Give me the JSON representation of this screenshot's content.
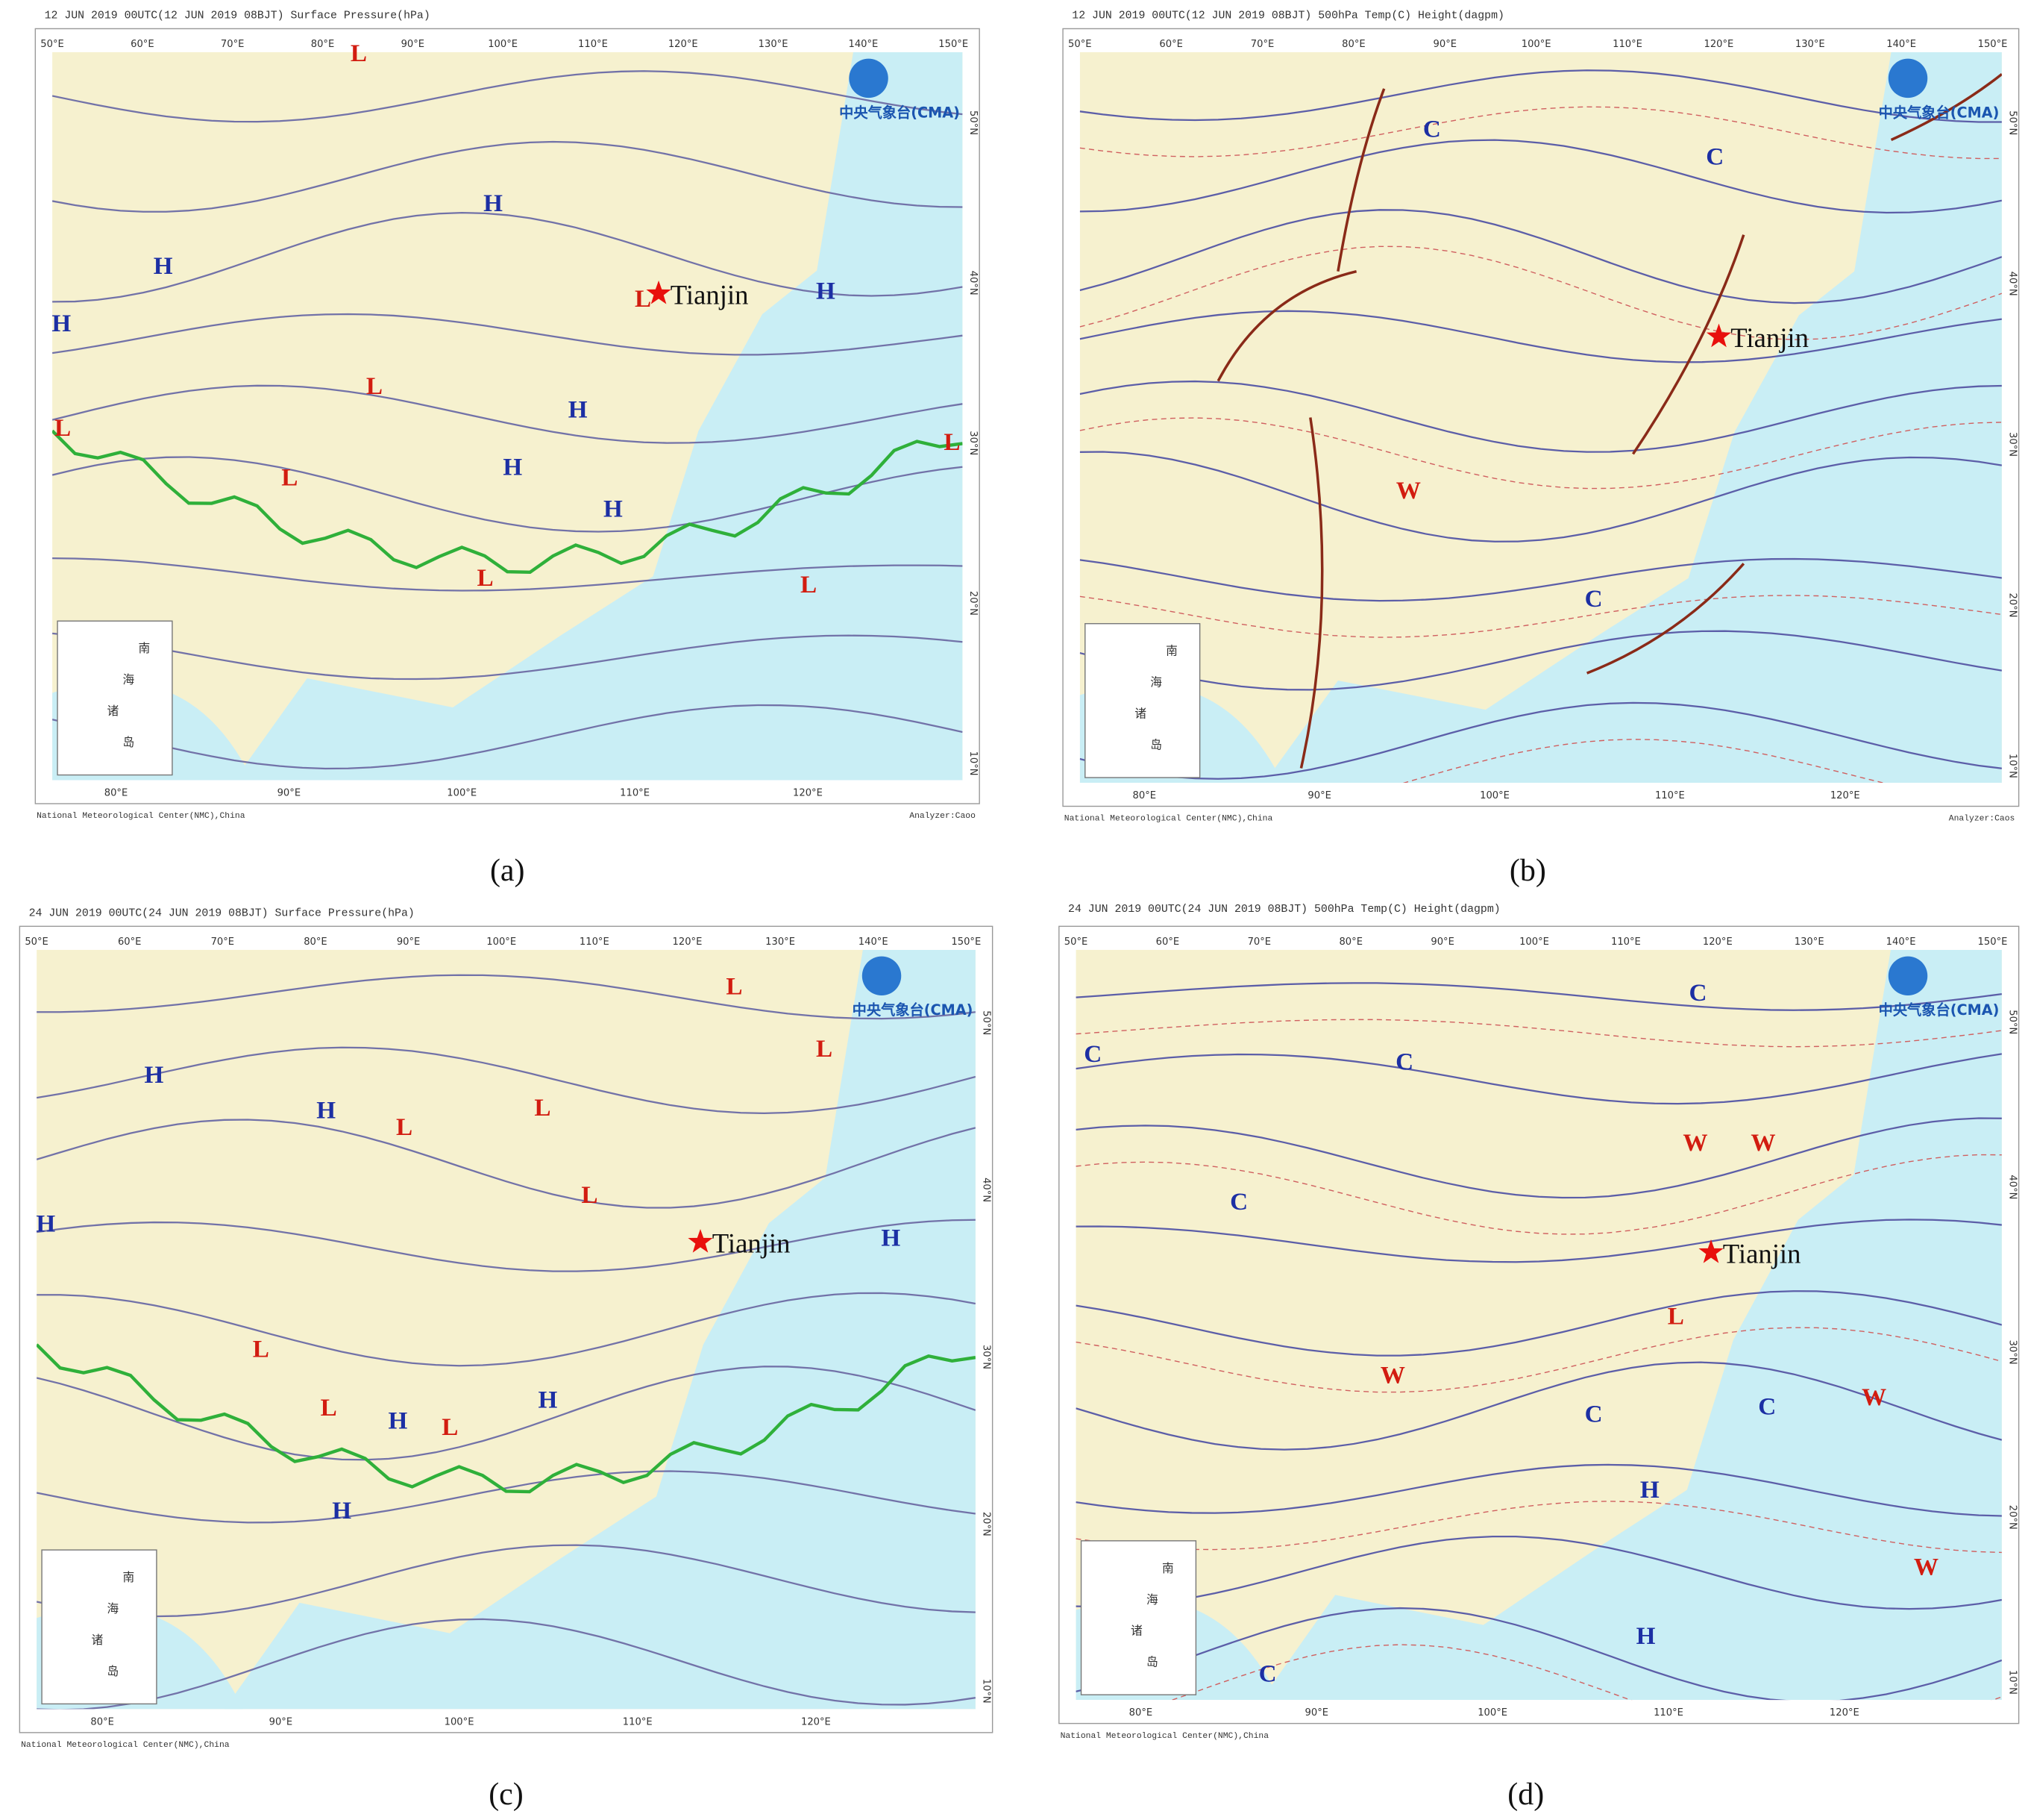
{
  "figure": {
    "panels": [
      {
        "header": "12 JUN 2019 00UTC(12 JUN 2019 08BJT) Surface Pressure(hPa)",
        "caption": "(a)",
        "footer": "National Meteorological Center(NMC),China",
        "analyst": "Analyzer:Caoo",
        "logo": "中央气象台(CMA)",
        "top_lon": [
          "50°E",
          "60°E",
          "70°E",
          "80°E",
          "90°E",
          "100°E",
          "110°E",
          "120°E",
          "130°E",
          "140°E",
          "150°E"
        ],
        "bottom_lon": [
          "80°E",
          "90°E",
          "100°E",
          "110°E",
          "120°E"
        ],
        "lat": [
          "50°N",
          "40°N",
          "30°N",
          "20°N",
          "10°N"
        ],
        "inset": [
          "南",
          "海",
          "诸",
          "岛"
        ],
        "city": "Tianjin",
        "symbols": [
          "H",
          "H",
          "H",
          "H",
          "H",
          "H",
          "H",
          "L",
          "L",
          "L",
          "L",
          "L",
          "L",
          "L",
          "L"
        ]
      },
      {
        "header": "12 JUN 2019 00UTC(12 JUN 2019 08BJT) 500hPa Temp(C) Height(dagpm)",
        "caption": "(b)",
        "footer": "National Meteorological Center(NMC),China",
        "analyst": "Analyzer:Caos",
        "logo": "中央气象台(CMA)",
        "top_lon": [
          "50°E",
          "60°E",
          "70°E",
          "80°E",
          "90°E",
          "100°E",
          "110°E",
          "120°E",
          "130°E",
          "140°E",
          "150°E"
        ],
        "bottom_lon": [
          "80°E",
          "90°E",
          "100°E",
          "110°E",
          "120°E"
        ],
        "lat": [
          "50°N",
          "40°N",
          "30°N",
          "20°N",
          "10°N"
        ],
        "inset": [
          "南",
          "海",
          "诸",
          "岛"
        ],
        "city": "Tianjin",
        "symbols": [
          "C",
          "C",
          "C",
          "W"
        ]
      },
      {
        "header": "24 JUN 2019 00UTC(24 JUN 2019 08BJT) Surface Pressure(hPa)",
        "caption": "(c)",
        "footer": "National Meteorological Center(NMC),China",
        "logo": "中央气象台(CMA)",
        "top_lon": [
          "50°E",
          "60°E",
          "70°E",
          "80°E",
          "90°E",
          "100°E",
          "110°E",
          "120°E",
          "130°E",
          "140°E",
          "150°E"
        ],
        "bottom_lon": [
          "80°E",
          "90°E",
          "100°E",
          "110°E",
          "120°E"
        ],
        "lat": [
          "50°N",
          "40°N",
          "30°N",
          "20°N",
          "10°N"
        ],
        "inset": [
          "南",
          "海",
          "诸",
          "岛"
        ],
        "city": "Tianjin",
        "symbols": [
          "H",
          "H",
          "H",
          "H",
          "H",
          "H",
          "H",
          "L",
          "L",
          "L",
          "L",
          "L",
          "L",
          "L",
          "L"
        ]
      },
      {
        "header": "24 JUN 2019 00UTC(24 JUN 2019 08BJT) 500hPa Temp(C) Height(dagpm)",
        "caption": "(d)",
        "footer": "National Meteorological Center(NMC),China",
        "logo": "中央气象台(CMA)",
        "top_lon": [
          "50°E",
          "60°E",
          "70°E",
          "80°E",
          "90°E",
          "100°E",
          "110°E",
          "120°E",
          "130°E",
          "140°E",
          "150°E"
        ],
        "bottom_lon": [
          "80°E",
          "90°E",
          "100°E",
          "110°E",
          "120°E"
        ],
        "lat": [
          "50°N",
          "40°N",
          "30°N",
          "20°N",
          "10°N"
        ],
        "inset": [
          "南",
          "海",
          "诸",
          "岛"
        ],
        "city": "Tianjin",
        "symbols": [
          "C",
          "C",
          "C",
          "C",
          "C",
          "C",
          "C",
          "W",
          "W",
          "W",
          "W",
          "W",
          "H",
          "H",
          "L"
        ]
      }
    ]
  }
}
